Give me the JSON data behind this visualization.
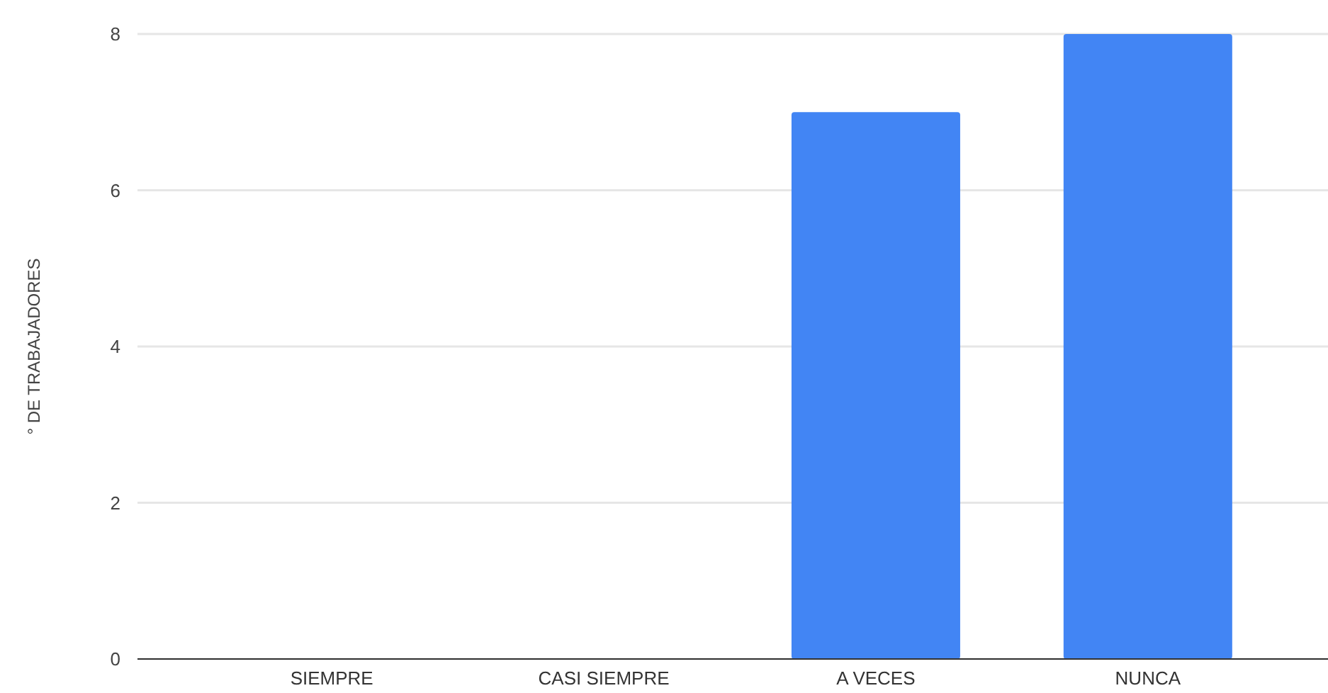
{
  "chart_data": {
    "type": "bar",
    "ylabel": "° DE TRABAJADORES",
    "categories": [
      "SIEMPRE",
      "CASI SIEMPRE",
      "A VECES",
      "NUNCA"
    ],
    "values": [
      0,
      0,
      7,
      8
    ],
    "color": "#4285f4",
    "ylim": [
      0,
      8
    ],
    "yticks": [
      0,
      2,
      4,
      6,
      8
    ],
    "grid": "y"
  }
}
